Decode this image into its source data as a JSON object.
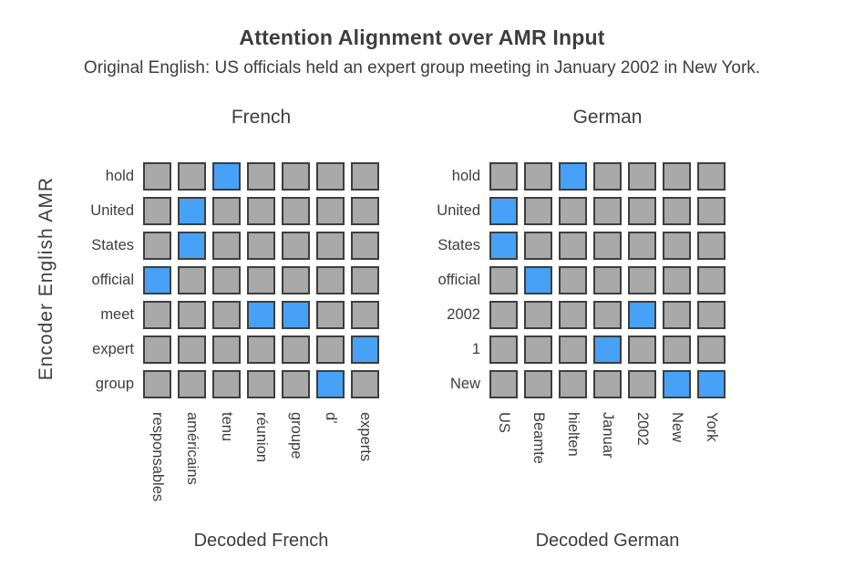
{
  "title": "Attention Alignment over AMR Input",
  "subtitle": "Original English: US officials held an expert group meeting in January 2002 in New York.",
  "ylabel": "Encoder English AMR",
  "colors": {
    "cell_gray": "#a9a9a9",
    "cell_aligned_blue": "#47a1f7",
    "cell_border": "#3e3e3e",
    "text": "#3d3d3d"
  },
  "chart_data": [
    {
      "type": "heatmap",
      "title": "French",
      "xlabel": "Decoded French",
      "ylabel": "Encoder English AMR",
      "rows": [
        "hold",
        "United",
        "States",
        "official",
        "meet",
        "expert",
        "group"
      ],
      "columns": [
        "responsables",
        "américains",
        "tenu",
        "réunion",
        "groupe",
        "d’",
        "experts"
      ],
      "legend": "1 = aligned (blue), 0 = not aligned (gray)",
      "matrix": [
        [
          0,
          0,
          1,
          0,
          0,
          0,
          0
        ],
        [
          0,
          1,
          0,
          0,
          0,
          0,
          0
        ],
        [
          0,
          1,
          0,
          0,
          0,
          0,
          0
        ],
        [
          1,
          0,
          0,
          0,
          0,
          0,
          0
        ],
        [
          0,
          0,
          0,
          1,
          1,
          0,
          0
        ],
        [
          0,
          0,
          0,
          0,
          0,
          0,
          1
        ],
        [
          0,
          0,
          0,
          0,
          0,
          1,
          0
        ]
      ]
    },
    {
      "type": "heatmap",
      "title": "German",
      "xlabel": "Decoded German",
      "ylabel": "Encoder English AMR",
      "rows": [
        "hold",
        "United",
        "States",
        "official",
        "2002",
        "1",
        "New"
      ],
      "columns": [
        "US",
        "Beamte",
        "hielten",
        "Januar",
        "2002",
        "New",
        "York"
      ],
      "legend": "1 = aligned (blue), 0 = not aligned (gray)",
      "matrix": [
        [
          0,
          0,
          1,
          0,
          0,
          0,
          0
        ],
        [
          1,
          0,
          0,
          0,
          0,
          0,
          0
        ],
        [
          1,
          0,
          0,
          0,
          0,
          0,
          0
        ],
        [
          0,
          1,
          0,
          0,
          0,
          0,
          0
        ],
        [
          0,
          0,
          0,
          0,
          1,
          0,
          0
        ],
        [
          0,
          0,
          0,
          1,
          0,
          0,
          0
        ],
        [
          0,
          0,
          0,
          0,
          0,
          1,
          1
        ]
      ]
    }
  ]
}
